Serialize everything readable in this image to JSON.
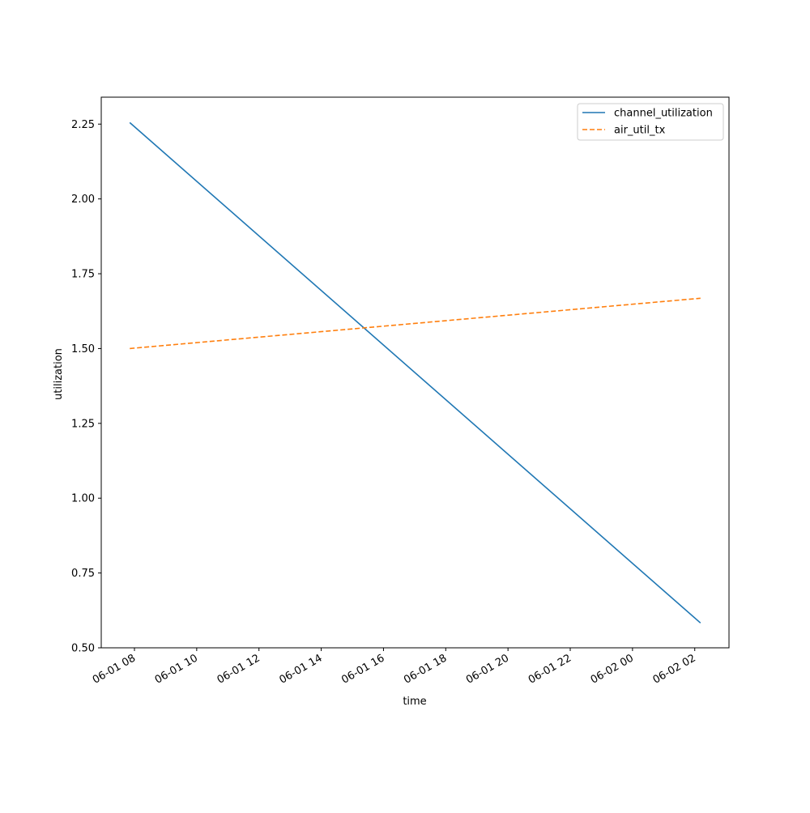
{
  "chart_data": {
    "type": "line",
    "xlabel": "time",
    "ylabel": "utilization",
    "x": [
      "2024-06-01 07:51",
      "2024-06-02 02:11"
    ],
    "x_tick_labels": [
      "06-01 08",
      "06-01 10",
      "06-01 12",
      "06-01 14",
      "06-01 16",
      "06-01 18",
      "06-01 20",
      "06-01 22",
      "06-02 00",
      "06-02 02"
    ],
    "x_tick_times": [
      "2024-06-01 08:00",
      "2024-06-01 10:00",
      "2024-06-01 12:00",
      "2024-06-01 14:00",
      "2024-06-01 16:00",
      "2024-06-01 18:00",
      "2024-06-01 20:00",
      "2024-06-01 22:00",
      "2024-06-02 00:00",
      "2024-06-02 02:00"
    ],
    "xlim": [
      "2024-06-01 06:56",
      "2024-06-02 03:06"
    ],
    "ylim": [
      0.5,
      2.34
    ],
    "y_ticks": [
      0.5,
      0.75,
      1.0,
      1.25,
      1.5,
      1.75,
      2.0,
      2.25
    ],
    "y_tick_labels": [
      "0.50",
      "0.75",
      "1.00",
      "1.25",
      "1.50",
      "1.75",
      "2.00",
      "2.25"
    ],
    "series": [
      {
        "name": "channel_utilization",
        "values": [
          2.255,
          0.583
        ],
        "color": "#1f77b4",
        "style": "solid"
      },
      {
        "name": "air_util_tx",
        "values": [
          1.5,
          1.668
        ],
        "color": "#ff7f0e",
        "style": "dashed"
      }
    ],
    "legend": "top-right",
    "grid": false
  }
}
